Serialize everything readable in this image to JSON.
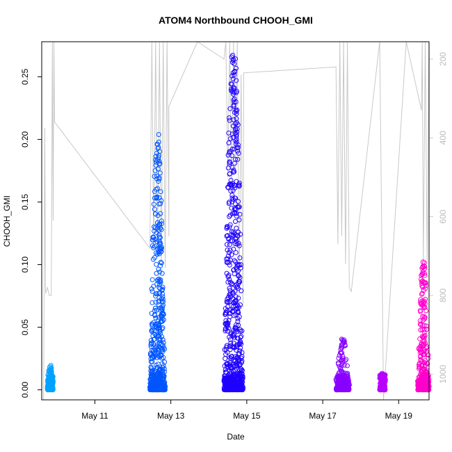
{
  "chart_data": {
    "type": "scatter",
    "title": "ATOM4 Northbound CHOOH_GMI",
    "xlabel": "Date",
    "ylabel": "CHOOH_GMI",
    "xlim": [
      9.6,
      19.8
    ],
    "ylim": [
      -0.008,
      0.278
    ],
    "x_ticks": [
      11,
      13,
      15,
      17,
      19
    ],
    "x_tick_labels": [
      "May 11",
      "May 13",
      "May 15",
      "May 17",
      "May 19"
    ],
    "y_ticks": [
      0.0,
      0.05,
      0.1,
      0.15,
      0.2,
      0.25
    ],
    "y_tick_labels": [
      "0.00",
      "0.05",
      "0.10",
      "0.15",
      "0.20",
      "0.25"
    ],
    "y2_lim": [
      156,
      1065
    ],
    "y2_ticks": [
      200,
      400,
      600,
      800,
      1000
    ],
    "y2_tick_labels": [
      "200",
      "400",
      "600",
      "800",
      "1000"
    ],
    "y2_color": "#cccccc",
    "grid": false,
    "legend": "none",
    "series": [
      {
        "x": [
          9.75,
          9.9
        ],
        "ymin": 0.0,
        "ymax": 0.02,
        "color": "#00a2ff"
      },
      {
        "x": [
          12.45,
          12.85
        ],
        "ymin": 0.0,
        "ymax": 0.205,
        "color": "#0055ff"
      },
      {
        "x": [
          14.4,
          14.9
        ],
        "ymin": 0.0,
        "ymax": 0.27,
        "color": "#1e00ff"
      },
      {
        "x": [
          17.35,
          17.7
        ],
        "ymin": 0.0,
        "ymax": 0.041,
        "color": "#8800ff"
      },
      {
        "x": [
          18.5,
          18.65
        ],
        "ymin": 0.0,
        "ymax": 0.014,
        "color": "#b800ff"
      },
      {
        "x": [
          19.5,
          19.8
        ],
        "ymin": 0.0,
        "ymax": 0.103,
        "color": "#ff00cc"
      }
    ],
    "pressure_profile": [
      [
        9.65,
        1065
      ],
      [
        9.68,
        375
      ],
      [
        9.7,
        795
      ],
      [
        9.75,
        780
      ],
      [
        9.8,
        800
      ],
      [
        9.85,
        800
      ],
      [
        9.88,
        156
      ],
      [
        9.9,
        610
      ],
      [
        9.92,
        156
      ],
      [
        9.94,
        360
      ],
      [
        12.45,
        680
      ],
      [
        12.5,
        156
      ],
      [
        12.55,
        680
      ],
      [
        12.6,
        156
      ],
      [
        12.65,
        700
      ],
      [
        12.7,
        156
      ],
      [
        12.75,
        720
      ],
      [
        12.8,
        156
      ],
      [
        12.85,
        730
      ],
      [
        12.9,
        156
      ],
      [
        12.95,
        650
      ],
      [
        12.95,
        320
      ],
      [
        13.7,
        156
      ],
      [
        14.4,
        200
      ],
      [
        14.45,
        156
      ],
      [
        14.5,
        500
      ],
      [
        14.55,
        156
      ],
      [
        14.6,
        520
      ],
      [
        14.65,
        156
      ],
      [
        14.7,
        480
      ],
      [
        14.75,
        156
      ],
      [
        14.8,
        800
      ],
      [
        14.85,
        240
      ],
      [
        14.9,
        830
      ],
      [
        14.92,
        235
      ],
      [
        17.35,
        220
      ],
      [
        17.4,
        670
      ],
      [
        17.45,
        156
      ],
      [
        17.5,
        650
      ],
      [
        17.55,
        156
      ],
      [
        17.6,
        720
      ],
      [
        17.65,
        156
      ],
      [
        17.7,
        780
      ],
      [
        17.75,
        790
      ],
      [
        18.5,
        156
      ],
      [
        18.6,
        1065
      ],
      [
        19.2,
        156
      ],
      [
        19.6,
        330
      ],
      [
        19.62,
        156
      ],
      [
        19.65,
        720
      ],
      [
        19.7,
        156
      ],
      [
        19.75,
        720
      ],
      [
        19.8,
        156
      ]
    ]
  }
}
